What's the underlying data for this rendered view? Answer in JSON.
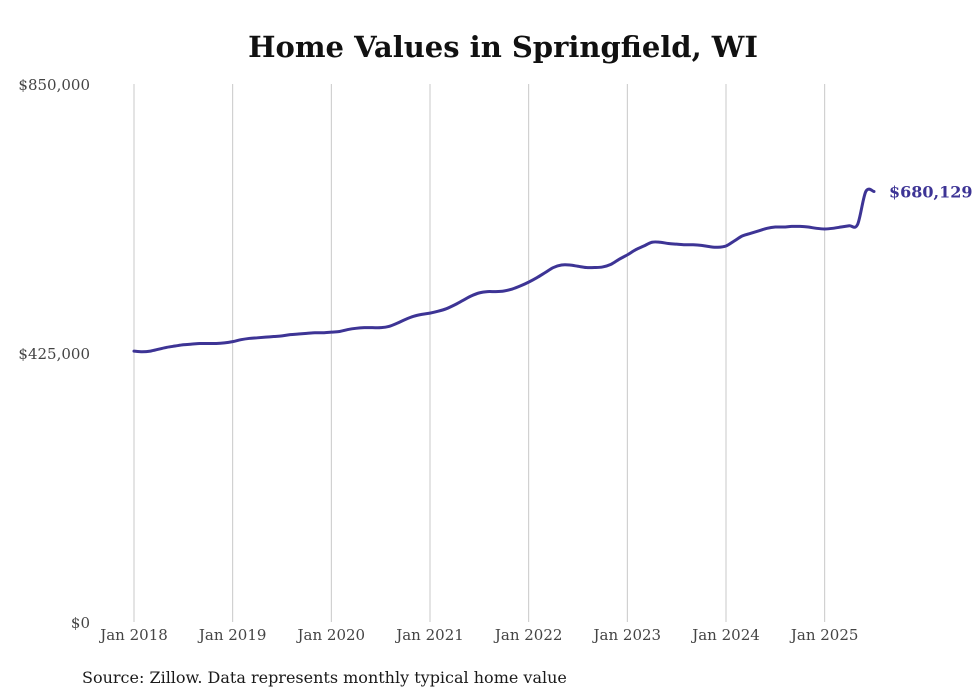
{
  "chart_data": {
    "type": "line",
    "title": "Home Values in Springfield, WI",
    "source": "Source: Zillow. Data represents monthly typical home value",
    "y_ticks": [
      {
        "value": 0,
        "label": "$0"
      },
      {
        "value": 425000,
        "label": "$425,000"
      },
      {
        "value": 850000,
        "label": "$850,000"
      }
    ],
    "x_ticks": [
      {
        "value": "2018-01",
        "label": "Jan 2018"
      },
      {
        "value": "2019-01",
        "label": "Jan 2019"
      },
      {
        "value": "2020-01",
        "label": "Jan 2020"
      },
      {
        "value": "2021-01",
        "label": "Jan 2021"
      },
      {
        "value": "2022-01",
        "label": "Jan 2022"
      },
      {
        "value": "2023-01",
        "label": "Jan 2023"
      },
      {
        "value": "2024-01",
        "label": "Jan 2024"
      },
      {
        "value": "2025-01",
        "label": "Jan 2025"
      }
    ],
    "ylim": [
      0,
      850000
    ],
    "xlim": [
      "2018-01",
      "2025-07"
    ],
    "grid": "vertical",
    "line_color": "#3d3495",
    "end_label": "$680,129",
    "series": [
      {
        "x": [
          "2018-01",
          "2018-02",
          "2018-03",
          "2018-04",
          "2018-05",
          "2018-06",
          "2018-07",
          "2018-08",
          "2018-09",
          "2018-10",
          "2018-11",
          "2018-12",
          "2019-01",
          "2019-02",
          "2019-03",
          "2019-04",
          "2019-05",
          "2019-06",
          "2019-07",
          "2019-08",
          "2019-09",
          "2019-10",
          "2019-11",
          "2019-12",
          "2020-01",
          "2020-02",
          "2020-03",
          "2020-04",
          "2020-05",
          "2020-06",
          "2020-07",
          "2020-08",
          "2020-09",
          "2020-10",
          "2020-11",
          "2020-12",
          "2021-01",
          "2021-02",
          "2021-03",
          "2021-04",
          "2021-05",
          "2021-06",
          "2021-07",
          "2021-08",
          "2021-09",
          "2021-10",
          "2021-11",
          "2021-12",
          "2022-01",
          "2022-02",
          "2022-03",
          "2022-04",
          "2022-05",
          "2022-06",
          "2022-07",
          "2022-08",
          "2022-09",
          "2022-10",
          "2022-11",
          "2022-12",
          "2023-01",
          "2023-02",
          "2023-03",
          "2023-04",
          "2023-05",
          "2023-06",
          "2023-07",
          "2023-08",
          "2023-09",
          "2023-10",
          "2023-11",
          "2023-12",
          "2024-01",
          "2024-02",
          "2024-03",
          "2024-04",
          "2024-05",
          "2024-06",
          "2024-07",
          "2024-08",
          "2024-09",
          "2024-10",
          "2024-11",
          "2024-12",
          "2025-01",
          "2025-02",
          "2025-03",
          "2025-04",
          "2025-05",
          "2025-06",
          "2025-07"
        ],
        "values": [
          428000,
          427000,
          428000,
          431000,
          434000,
          436000,
          438000,
          439000,
          440000,
          440000,
          440000,
          441000,
          443000,
          446000,
          448000,
          449000,
          450000,
          451000,
          452000,
          454000,
          455000,
          456000,
          457000,
          457000,
          458000,
          459000,
          462000,
          464000,
          465000,
          465000,
          465000,
          467000,
          472000,
          478000,
          483000,
          486000,
          488000,
          491000,
          495000,
          501000,
          508000,
          515000,
          520000,
          522000,
          522000,
          523000,
          526000,
          531000,
          537000,
          544000,
          552000,
          560000,
          564000,
          564000,
          562000,
          560000,
          560000,
          561000,
          565000,
          573000,
          580000,
          588000,
          594000,
          600000,
          600000,
          598000,
          597000,
          596000,
          596000,
          595000,
          593000,
          592000,
          594000,
          602000,
          610000,
          614000,
          618000,
          622000,
          624000,
          624000,
          625000,
          625000,
          624000,
          622000,
          621000,
          622000,
          624000,
          626000,
          628000,
          680129,
          680129
        ]
      }
    ]
  }
}
